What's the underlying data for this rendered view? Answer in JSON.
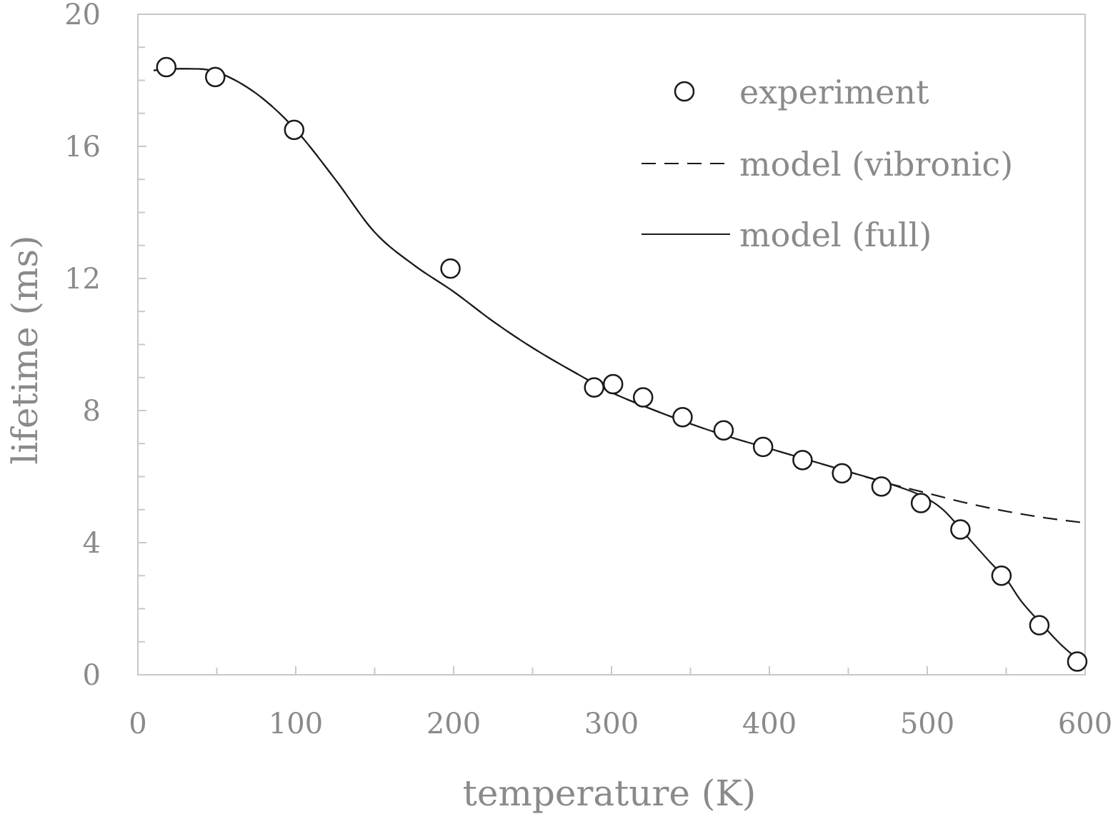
{
  "chart_data": {
    "type": "scatter",
    "title": "",
    "xlabel": "temperature (K)",
    "ylabel": "lifetime (ms)",
    "xlim": [
      0,
      600
    ],
    "ylim": [
      0,
      20
    ],
    "x_ticks": [
      0,
      100,
      200,
      300,
      400,
      500,
      600
    ],
    "y_ticks": [
      0,
      4,
      8,
      12,
      16,
      20
    ],
    "x_minor_step": 50,
    "y_minor_step": 1,
    "grid": false,
    "frame": "full box",
    "legend_position": "top-right",
    "colors": {
      "axis": "#c8c8c8",
      "text": "#8a8a8a",
      "data": "#1a1a1a",
      "marker_fill": "#ffffff"
    },
    "series": [
      {
        "name": "experiment",
        "kind": "markers",
        "marker": "open-circle",
        "points": [
          [
            18,
            18.4
          ],
          [
            49,
            18.1
          ],
          [
            99,
            16.5
          ],
          [
            198,
            12.3
          ],
          [
            289,
            8.7
          ],
          [
            301,
            8.8
          ],
          [
            320,
            8.4
          ],
          [
            345,
            7.8
          ],
          [
            371,
            7.4
          ],
          [
            396,
            6.9
          ],
          [
            421,
            6.5
          ],
          [
            446,
            6.1
          ],
          [
            471,
            5.7
          ],
          [
            496,
            5.2
          ],
          [
            521,
            4.4
          ],
          [
            547,
            3.0
          ],
          [
            571,
            1.5
          ],
          [
            595,
            0.4
          ]
        ]
      },
      {
        "name": "model (vibronic)",
        "kind": "line",
        "dash": "dashed",
        "points": [
          [
            10,
            18.3
          ],
          [
            30,
            18.35
          ],
          [
            50,
            18.25
          ],
          [
            75,
            17.6
          ],
          [
            100,
            16.5
          ],
          [
            125,
            15.0
          ],
          [
            150,
            13.4
          ],
          [
            175,
            12.4
          ],
          [
            200,
            11.6
          ],
          [
            225,
            10.7
          ],
          [
            250,
            9.9
          ],
          [
            275,
            9.2
          ],
          [
            300,
            8.55
          ],
          [
            325,
            8.05
          ],
          [
            350,
            7.6
          ],
          [
            375,
            7.2
          ],
          [
            400,
            6.85
          ],
          [
            425,
            6.5
          ],
          [
            450,
            6.15
          ],
          [
            475,
            5.8
          ],
          [
            500,
            5.5
          ],
          [
            525,
            5.2
          ],
          [
            550,
            4.95
          ],
          [
            575,
            4.75
          ],
          [
            600,
            4.6
          ]
        ]
      },
      {
        "name": "model (full)",
        "kind": "line",
        "dash": "solid",
        "points": [
          [
            10,
            18.3
          ],
          [
            30,
            18.35
          ],
          [
            50,
            18.25
          ],
          [
            75,
            17.6
          ],
          [
            100,
            16.5
          ],
          [
            125,
            15.0
          ],
          [
            150,
            13.4
          ],
          [
            175,
            12.4
          ],
          [
            200,
            11.6
          ],
          [
            225,
            10.7
          ],
          [
            250,
            9.9
          ],
          [
            275,
            9.2
          ],
          [
            300,
            8.55
          ],
          [
            325,
            8.05
          ],
          [
            350,
            7.6
          ],
          [
            375,
            7.2
          ],
          [
            400,
            6.85
          ],
          [
            425,
            6.5
          ],
          [
            450,
            6.15
          ],
          [
            475,
            5.8
          ],
          [
            495,
            5.45
          ],
          [
            510,
            5.0
          ],
          [
            525,
            4.2
          ],
          [
            540,
            3.4
          ],
          [
            550,
            2.9
          ],
          [
            560,
            2.2
          ],
          [
            575,
            1.4
          ],
          [
            585,
            0.9
          ],
          [
            597,
            0.4
          ]
        ]
      }
    ]
  }
}
